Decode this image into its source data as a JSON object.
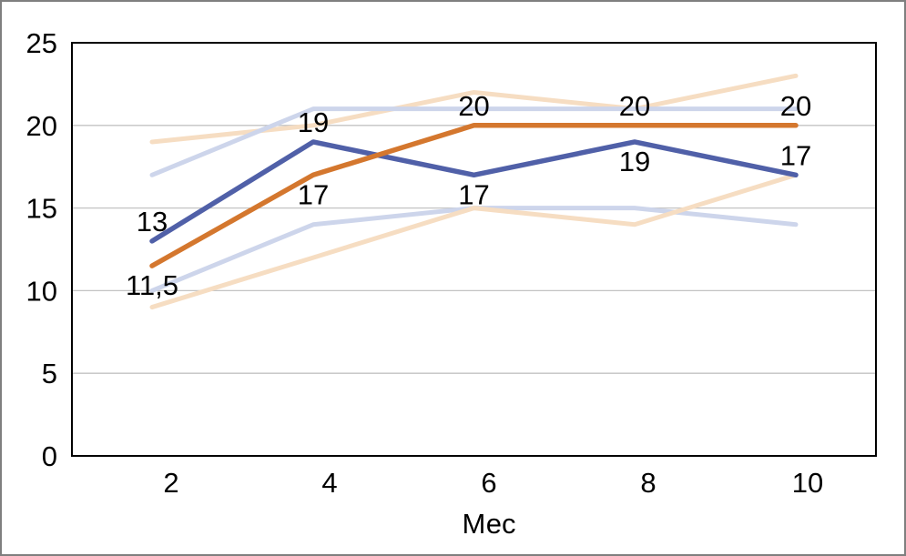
{
  "frame": {
    "border_color": "#7F7F7F",
    "background_color": "#FFFFFF"
  },
  "chart_data": {
    "type": "line",
    "xlabel": "Мес",
    "ylabel": "",
    "title": "",
    "x": [
      2,
      4,
      6,
      8,
      10
    ],
    "xtick_labels": [
      "2",
      "4",
      "6",
      "8",
      "10"
    ],
    "ylim": [
      0,
      25
    ],
    "yticks": [
      0,
      5,
      10,
      15,
      20,
      25
    ],
    "ytick_labels": [
      "0",
      "5",
      "10",
      "15",
      "20",
      "25"
    ],
    "grid": "horizontal",
    "legend": "none",
    "style": {
      "gridline_color": "#C3C3C3",
      "axis_color": "#000000",
      "text_color": "#000000"
    },
    "series": [
      {
        "name": "peach-upper",
        "color": "#F6DDC2",
        "width": 5,
        "values": [
          19,
          20,
          22,
          21,
          23
        ],
        "labels": null
      },
      {
        "name": "lightblue-upper",
        "color": "#CDD5EB",
        "width": 5,
        "values": [
          17,
          21,
          21,
          21,
          21
        ],
        "labels": null
      },
      {
        "name": "lightblue-lower",
        "color": "#CDD5EB",
        "width": 5,
        "values": [
          10,
          14,
          15,
          15,
          14
        ],
        "labels": null
      },
      {
        "name": "peach-lower",
        "color": "#F6DDC2",
        "width": 5,
        "values": [
          9,
          12,
          15,
          14,
          17
        ],
        "labels": null
      },
      {
        "name": "dark-blue",
        "color": "#5060A8",
        "width": 5.5,
        "values": [
          13,
          19,
          17,
          19,
          17
        ],
        "labels": [
          "13",
          "19",
          "17",
          "19",
          "17"
        ],
        "label_placement": [
          "above",
          "above",
          "below",
          "below",
          "above"
        ]
      },
      {
        "name": "orange",
        "color": "#D4772E",
        "width": 5.5,
        "values": [
          11.5,
          17,
          20,
          20,
          20
        ],
        "labels": [
          "11,5",
          "17",
          "20",
          "20",
          "20"
        ],
        "label_placement": [
          "below",
          "below",
          "above",
          "above",
          "above"
        ]
      }
    ]
  }
}
